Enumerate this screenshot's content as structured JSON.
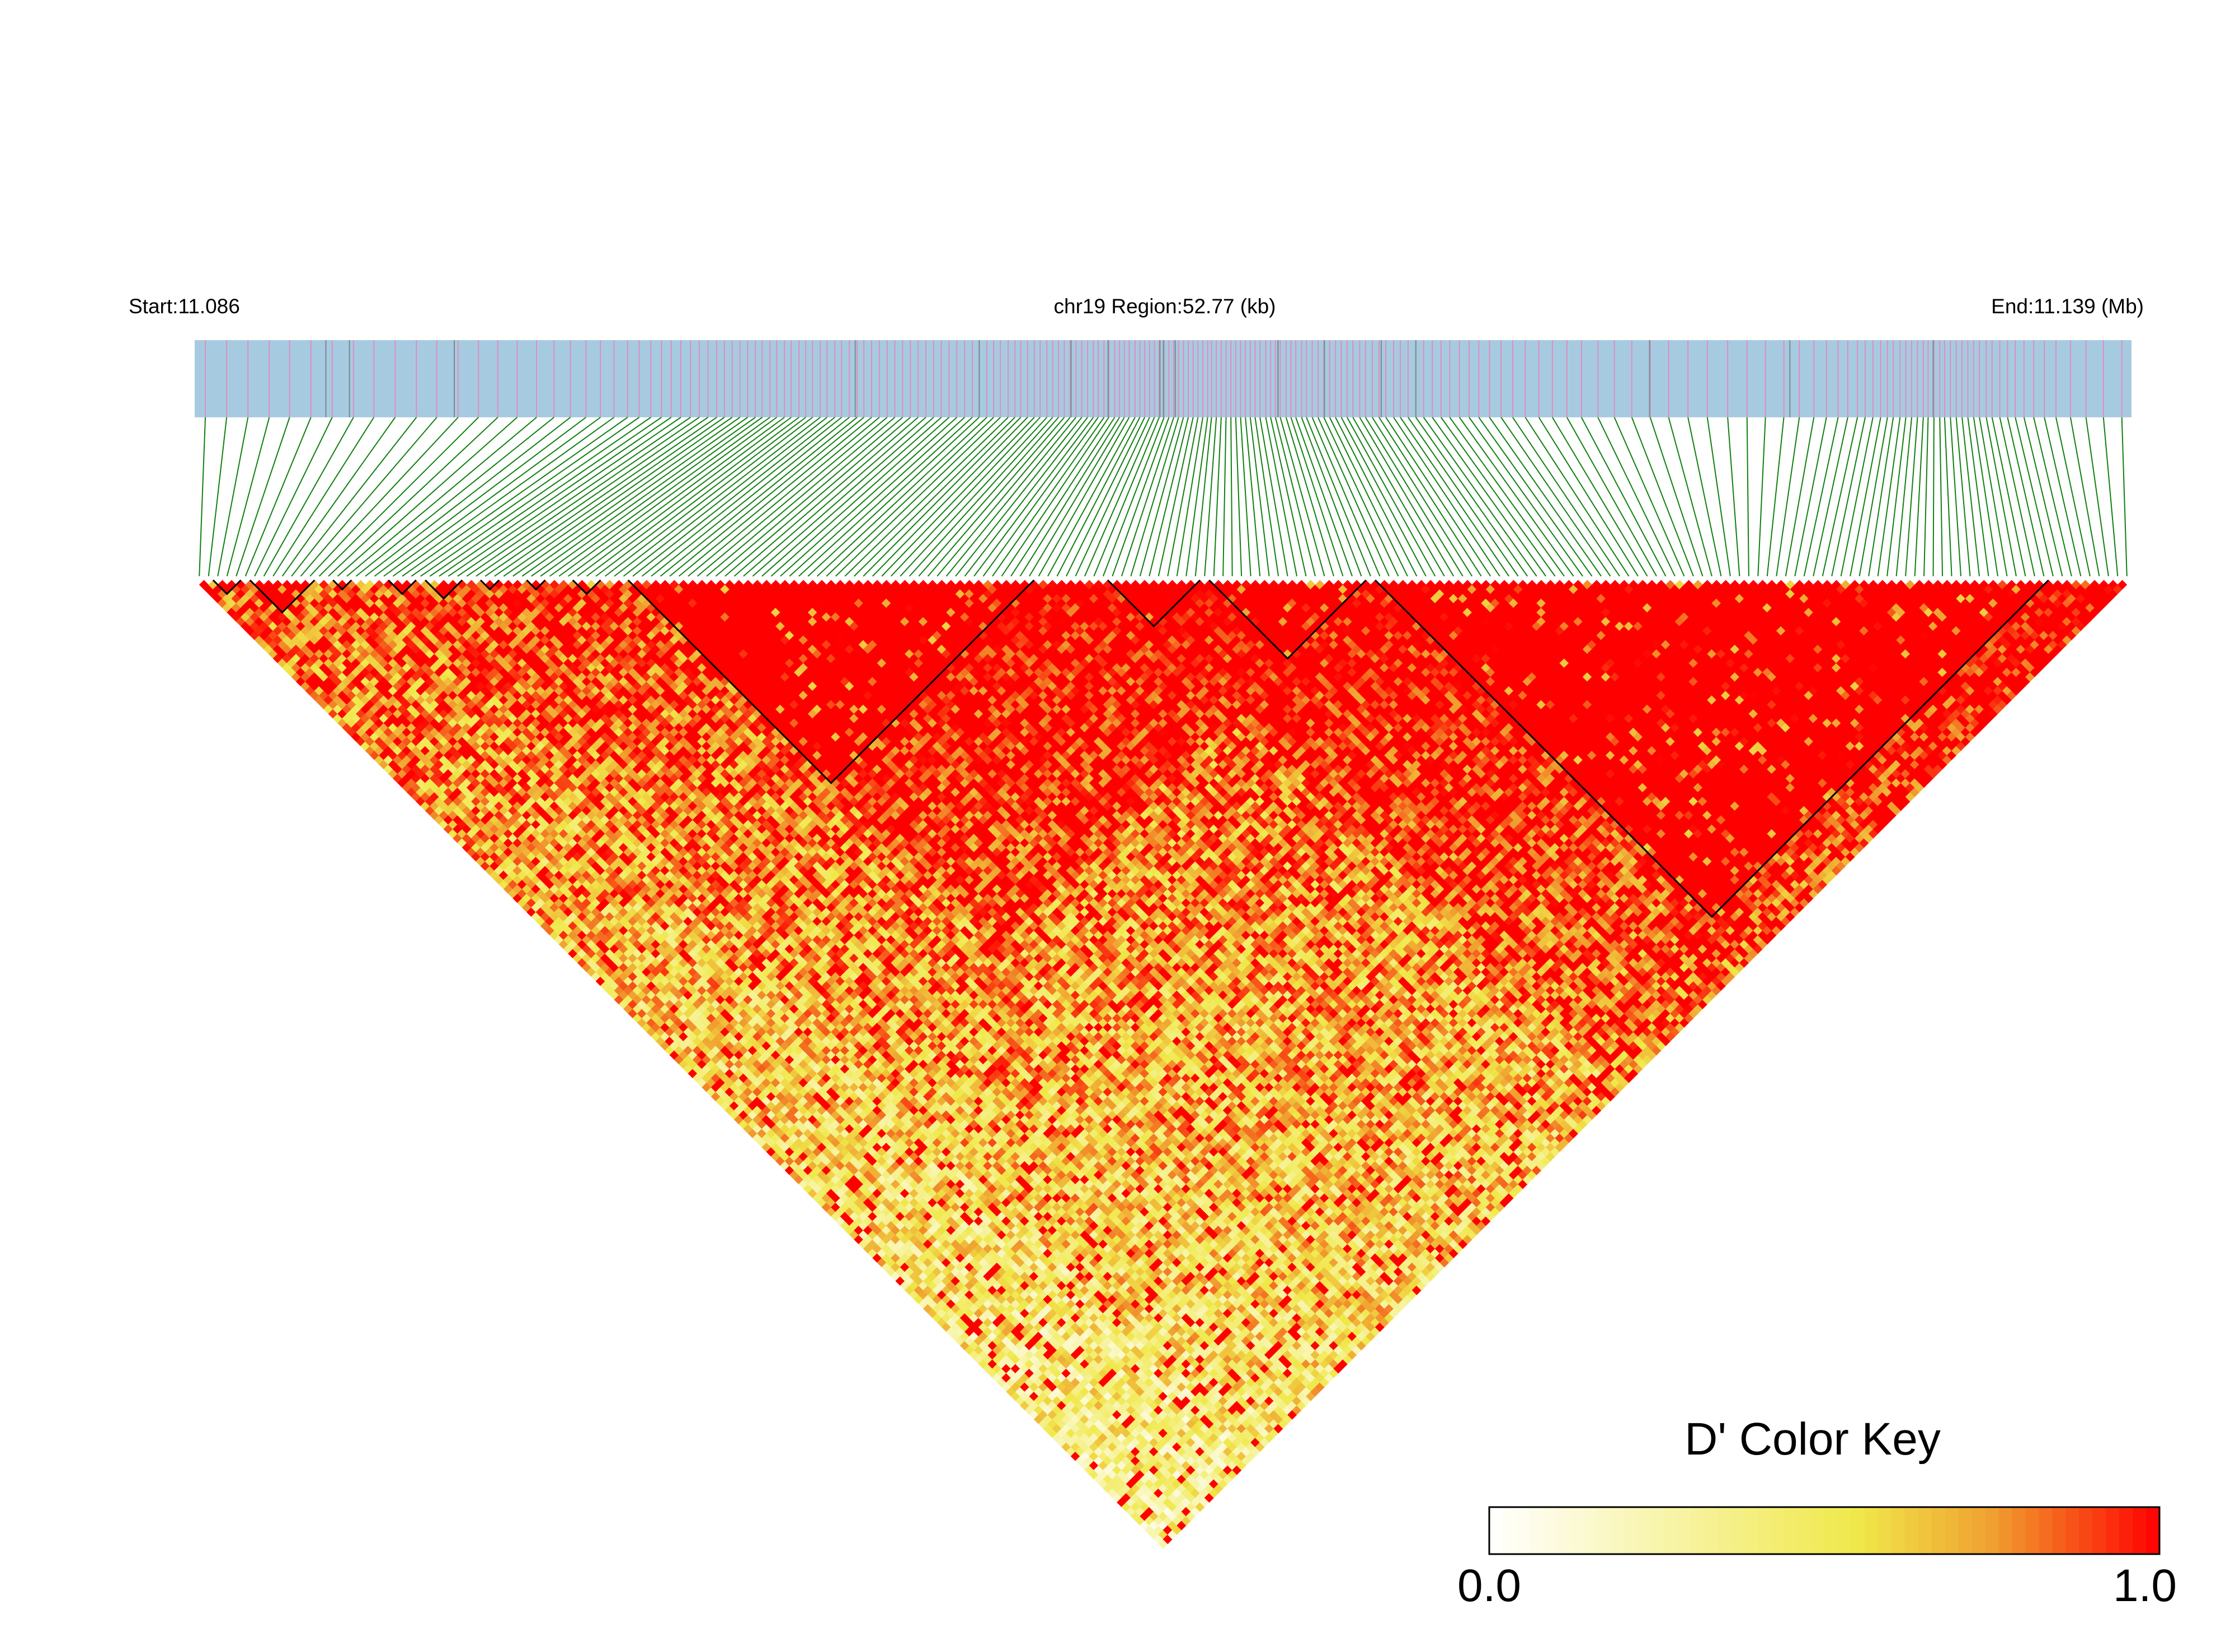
{
  "header": {
    "start_label": "Start:11.086",
    "region_label": "chr19 Region:52.77 (kb)",
    "end_label": "End:11.139 (Mb)"
  },
  "chart_data": {
    "type": "heatmap",
    "chromosome": "chr19",
    "region_start_mb": 11.086,
    "region_end_mb": 11.139,
    "region_length_kb": 52.77,
    "snp_count": 210,
    "metric": "D'",
    "color_scale": {
      "min": 0.0,
      "max": 1.0,
      "colors": [
        "#ffffff",
        "#f0e84a",
        "#f0a030",
        "#ff0000"
      ]
    },
    "ld_blocks_snp_index": [
      [
        2,
        4
      ],
      [
        6,
        12
      ],
      [
        15,
        16
      ],
      [
        21,
        23
      ],
      [
        25,
        28
      ],
      [
        31,
        32
      ],
      [
        36,
        37
      ],
      [
        41,
        43
      ],
      [
        47,
        90
      ],
      [
        99,
        108
      ],
      [
        110,
        126
      ],
      [
        128,
        200
      ]
    ],
    "track_colors": {
      "gene_track": "#a6cbe0",
      "snp_mark": "#e08cc0",
      "gene_mark": "#7a8a8a",
      "connector": "#108010"
    }
  },
  "legend": {
    "title": "D' Color Key",
    "min_label": "0.0",
    "max_label": "1.0"
  }
}
